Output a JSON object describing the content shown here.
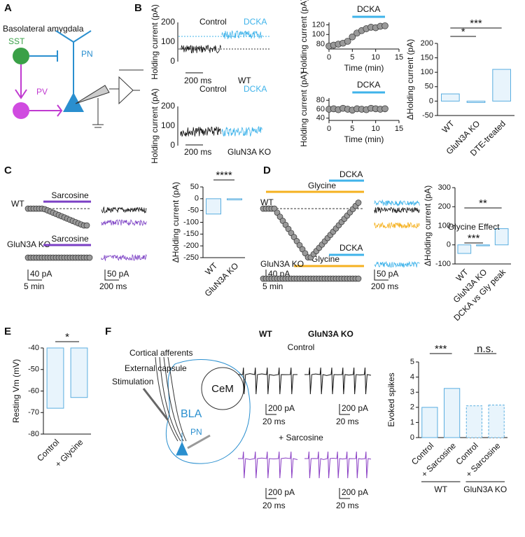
{
  "figure": {
    "panel_labels": [
      "A",
      "B",
      "C",
      "D",
      "E",
      "F"
    ],
    "a": {
      "title": "Basolateral amygdala",
      "sst": "SST",
      "pn": "PN",
      "pv": "PV"
    },
    "b_traces": {
      "ylabel": "Holding current (pA)",
      "ticks": [
        "200",
        "100",
        "0"
      ],
      "control": "Control",
      "dcka": "DCKA",
      "wt": "WT",
      "ko": "GluN3A KO",
      "scale": "200 ms"
    },
    "c_traces": {
      "wt": "WT",
      "ko": "GluN3A KO",
      "drug": "Sarcosine",
      "scale": [
        "40 pA",
        "5 min",
        "50 pA",
        "200 ms"
      ]
    },
    "d_traces": {
      "wt": "WT",
      "ko": "GluN3A KO",
      "dcka": "DCKA",
      "glycine": "Glycine",
      "scale": [
        "40 pA",
        "5 min",
        "50 pA",
        "200 ms"
      ]
    },
    "f_diagram": {
      "afferents": "Cortical afferents",
      "capsule": "External capsule",
      "stim": "Stimulation",
      "bla": "BLA",
      "pn": "PN",
      "cem": "CeM"
    },
    "f_traces": {
      "wt": "WT",
      "ko": "GluN3A KO",
      "control": "Control",
      "sarcosine": "+ Sarcosine",
      "scale": [
        "200 pA",
        "20 ms"
      ]
    }
  },
  "chart_data": [
    {
      "type": "scatter",
      "annotation": "DCKA",
      "span": [
        5,
        12
      ],
      "ylabel": "Holding current (pA)",
      "xlabel": "Time (min)",
      "x": [
        0,
        1,
        2,
        3,
        4,
        5,
        6,
        7,
        8,
        9,
        10,
        11,
        12
      ],
      "y": [
        76,
        78,
        80,
        82,
        86,
        95,
        103,
        108,
        112,
        115,
        114,
        117,
        118
      ],
      "xlim": [
        0,
        15
      ],
      "xticks": [
        0,
        5,
        10,
        15
      ],
      "ylim": [
        70,
        125
      ],
      "yticks": [
        80,
        100,
        120
      ]
    },
    {
      "type": "scatter",
      "annotation": "DCKA",
      "span": [
        5,
        12
      ],
      "ylabel": "Holding current (pA)",
      "xlabel": "Time (min)",
      "x": [
        0,
        1,
        2,
        3,
        4,
        5,
        6,
        7,
        8,
        9,
        10,
        11,
        12
      ],
      "y": [
        60,
        61,
        59,
        62,
        60,
        58,
        61,
        60,
        59,
        62,
        61,
        60,
        61
      ],
      "xlim": [
        0,
        15
      ],
      "xticks": [
        0,
        5,
        10,
        15
      ],
      "ylim": [
        35,
        85
      ],
      "yticks": [
        40,
        60,
        80
      ]
    },
    {
      "type": "bar",
      "ylabel": "ΔHolding current (pA)",
      "categories": [
        "WT",
        "GluN3A KO",
        "DTE-treated"
      ],
      "values": [
        25,
        -5,
        110
      ],
      "ylim": [
        -50,
        200
      ],
      "yticks": [
        -50,
        0,
        50,
        100,
        150,
        200
      ],
      "significance": [
        "*",
        "***"
      ],
      "color": "#5aaee0"
    },
    {
      "type": "bar",
      "ylabel": "ΔHolding current (pA)",
      "categories": [
        "WT",
        "GluN3A KO"
      ],
      "values": [
        -65,
        -5
      ],
      "ylim": [
        -250,
        50
      ],
      "yticks": [
        -250,
        -200,
        -150,
        -100,
        -50,
        0,
        50
      ],
      "significance": [
        "****"
      ],
      "color": "#5aaee0"
    },
    {
      "type": "bar",
      "ylabel": "ΔHolding current (pA)",
      "annotation": "Glycine Effect",
      "categories": [
        "WT",
        "GluN3A KO",
        "DCKA vs Gly peak"
      ],
      "values": [
        -45,
        -5,
        85
      ],
      "ylim": [
        -100,
        300
      ],
      "yticks": [
        -100,
        0,
        100,
        200,
        300
      ],
      "significance": [
        "***",
        "**"
      ],
      "color": "#5aaee0"
    },
    {
      "type": "bar",
      "ylabel": "Resting Vm (mV)",
      "categories": [
        "Control",
        "+ Glycine"
      ],
      "values": [
        -68,
        -63
      ],
      "ylim": [
        -80,
        -40
      ],
      "yticks": [
        -80,
        -70,
        -60,
        -50,
        -40
      ],
      "significance": [
        "*"
      ],
      "color": "#5aaee0"
    },
    {
      "type": "bar",
      "ylabel": "Evoked spikes",
      "categories": [
        "Control",
        "+ Sarcosine",
        "Control",
        "+ Sarcosine"
      ],
      "values": [
        2.0,
        3.25,
        2.1,
        2.15
      ],
      "groups": [
        "WT",
        "GluN3A KO"
      ],
      "ylim": [
        0,
        5
      ],
      "yticks": [
        0,
        1,
        2,
        3,
        4,
        5
      ],
      "significance": [
        "***",
        "n.s."
      ],
      "color": "#5aaee0"
    }
  ]
}
